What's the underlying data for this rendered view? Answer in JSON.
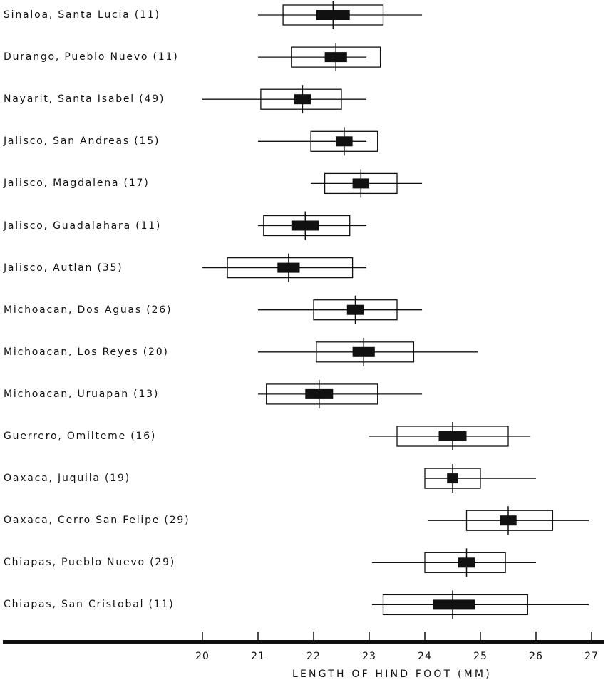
{
  "chart_data": {
    "type": "box",
    "xlabel": "LENGTH OF HIND FOOT (MM)",
    "xlim": [
      16.4,
      27.2
    ],
    "ticks": [
      20,
      21,
      22,
      23,
      24,
      25,
      26,
      27
    ],
    "rows": [
      {
        "label": "Sinaloa, Santa Lucia (11)",
        "min": 21.0,
        "max": 23.95,
        "mean": 22.35,
        "se_low": 22.05,
        "se_high": 22.65,
        "sd_low": 21.45,
        "sd_high": 23.25
      },
      {
        "label": "Durango, Pueblo Nuevo (11)",
        "min": 21.0,
        "max": 22.95,
        "mean": 22.4,
        "se_low": 22.2,
        "se_high": 22.6,
        "sd_low": 21.6,
        "sd_high": 23.2
      },
      {
        "label": "Nayarit, Santa Isabel (49)",
        "min": 20.0,
        "max": 22.95,
        "mean": 21.8,
        "se_low": 21.65,
        "se_high": 21.95,
        "sd_low": 21.05,
        "sd_high": 22.5
      },
      {
        "label": "Jalisco, San Andreas (15)",
        "min": 21.0,
        "max": 22.95,
        "mean": 22.55,
        "se_low": 22.4,
        "se_high": 22.7,
        "sd_low": 21.95,
        "sd_high": 23.15
      },
      {
        "label": "Jalisco, Magdalena (17)",
        "min": 21.95,
        "max": 23.95,
        "mean": 22.85,
        "se_low": 22.7,
        "se_high": 23.0,
        "sd_low": 22.2,
        "sd_high": 23.5
      },
      {
        "label": "Jalisco, Guadalahara (11)",
        "min": 21.0,
        "max": 22.95,
        "mean": 21.85,
        "se_low": 21.6,
        "se_high": 22.1,
        "sd_low": 21.1,
        "sd_high": 22.65
      },
      {
        "label": "Jalisco, Autlan (35)",
        "min": 20.0,
        "max": 22.95,
        "mean": 21.55,
        "se_low": 21.35,
        "se_high": 21.75,
        "sd_low": 20.45,
        "sd_high": 22.7
      },
      {
        "label": "Michoacan, Dos Aguas (26)",
        "min": 21.0,
        "max": 23.95,
        "mean": 22.75,
        "se_low": 22.6,
        "se_high": 22.9,
        "sd_low": 22.0,
        "sd_high": 23.5
      },
      {
        "label": "Michoacan, Los Reyes (20)",
        "min": 21.0,
        "max": 24.95,
        "mean": 22.9,
        "se_low": 22.7,
        "se_high": 23.1,
        "sd_low": 22.05,
        "sd_high": 23.8
      },
      {
        "label": "Michoacan, Uruapan (13)",
        "min": 21.0,
        "max": 23.95,
        "mean": 22.1,
        "se_low": 21.85,
        "se_high": 22.35,
        "sd_low": 21.15,
        "sd_high": 23.15
      },
      {
        "label": "Guerrero, Omilteme (16)",
        "min": 23.0,
        "max": 25.9,
        "mean": 24.5,
        "se_low": 24.25,
        "se_high": 24.75,
        "sd_low": 23.5,
        "sd_high": 25.5
      },
      {
        "label": "Oaxaca, Juquila (19)",
        "min": 24.0,
        "max": 26.0,
        "mean": 24.5,
        "se_low": 24.4,
        "se_high": 24.6,
        "sd_low": 24.0,
        "sd_high": 25.0
      },
      {
        "label": "Oaxaca, Cerro San Felipe (29)",
        "min": 24.05,
        "max": 26.95,
        "mean": 25.5,
        "se_low": 25.35,
        "se_high": 25.65,
        "sd_low": 24.75,
        "sd_high": 26.3
      },
      {
        "label": "Chiapas, Pueblo Nuevo (29)",
        "min": 23.05,
        "max": 26.0,
        "mean": 24.75,
        "se_low": 24.6,
        "se_high": 24.9,
        "sd_low": 24.0,
        "sd_high": 25.45
      },
      {
        "label": "Chiapas, San Cristobal (11)",
        "min": 23.05,
        "max": 26.95,
        "mean": 24.5,
        "se_low": 24.15,
        "se_high": 24.9,
        "sd_low": 23.25,
        "sd_high": 25.85
      }
    ]
  }
}
